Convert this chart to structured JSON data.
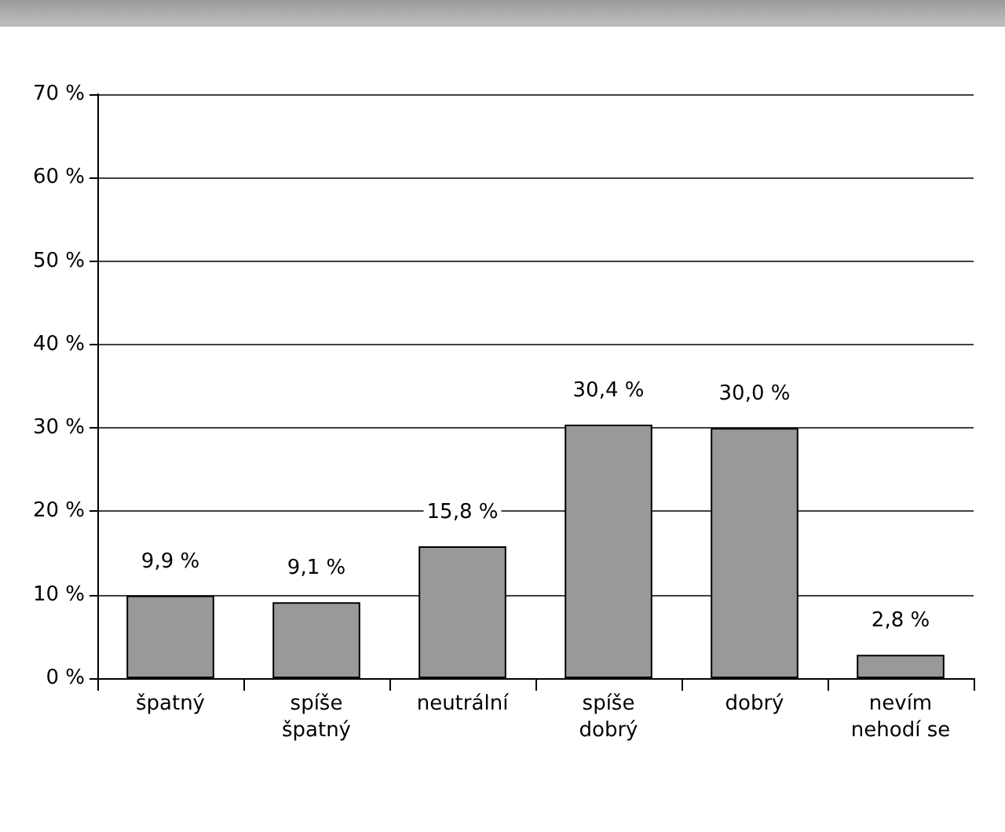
{
  "chart_data": {
    "type": "bar",
    "categories": [
      "špatný",
      "spíše\nšpatný",
      "neutrální",
      "spíše\ndobrý",
      "dobrý",
      "nevím\nnehodí se"
    ],
    "values": [
      9.9,
      9.1,
      15.8,
      30.4,
      30.0,
      2.8
    ],
    "value_labels": [
      "9,9 %",
      "9,1 %",
      "15,8 %",
      "30,4 %",
      "30,0 %",
      "2,8 %"
    ],
    "color": "#999999",
    "ylim": [
      0,
      70
    ],
    "yticks": [
      {
        "value": 0,
        "label": "0 %"
      },
      {
        "value": 10,
        "label": "10 %"
      },
      {
        "value": 20,
        "label": "20 %"
      },
      {
        "value": 30,
        "label": "30 %"
      },
      {
        "value": 40,
        "label": "40 %"
      },
      {
        "value": 50,
        "label": "50 %"
      },
      {
        "value": 60,
        "label": "60 %"
      },
      {
        "value": 70,
        "label": "70 %"
      }
    ],
    "grid": "y"
  }
}
